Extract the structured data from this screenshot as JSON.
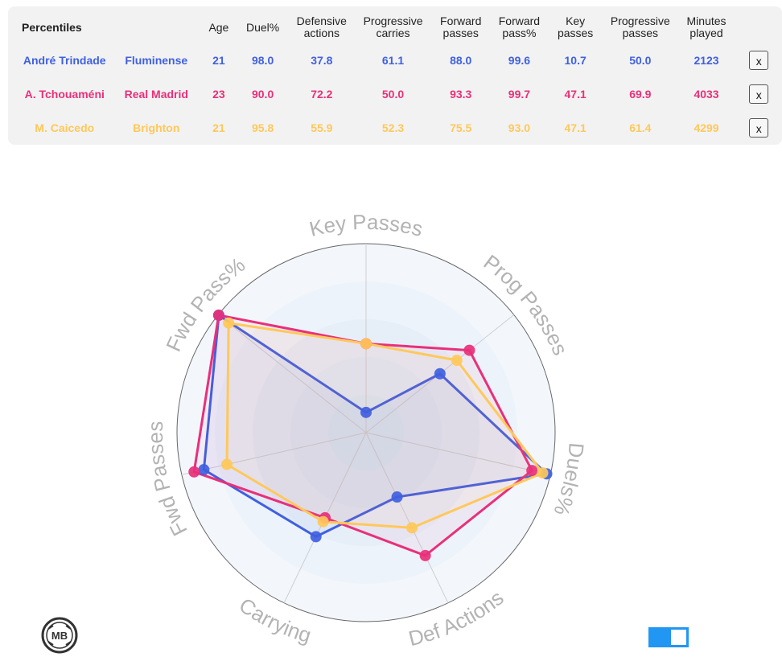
{
  "table": {
    "title": "Percentiles",
    "headers": [
      {
        "key": "age",
        "label": "Age",
        "width": 48
      },
      {
        "key": "duel",
        "label": "Duel%",
        "width": 62
      },
      {
        "key": "def",
        "label": "Defensive actions",
        "width": 85
      },
      {
        "key": "pcarry",
        "label": "Progressive carries",
        "width": 93
      },
      {
        "key": "fwd",
        "label": "Forward passes",
        "width": 76
      },
      {
        "key": "fwdpct",
        "label": "Forward pass%",
        "width": 70
      },
      {
        "key": "key",
        "label": "Key passes",
        "width": 70
      },
      {
        "key": "ppass",
        "label": "Progressive passes",
        "width": 92
      },
      {
        "key": "min",
        "label": "Minutes played",
        "width": 73
      }
    ],
    "rows": [
      {
        "player": "André Trindade",
        "club": "Fluminense",
        "color": "#4060e0",
        "values": [
          "21",
          "98.0",
          "37.8",
          "61.1",
          "88.0",
          "99.6",
          "10.7",
          "50.0",
          "2123"
        ]
      },
      {
        "player": "A. Tchouaméni",
        "club": "Real Madrid",
        "color": "#e8307a",
        "values": [
          "23",
          "90.0",
          "72.2",
          "50.0",
          "93.3",
          "99.7",
          "47.1",
          "69.9",
          "4033"
        ]
      },
      {
        "player": "M. Caicedo",
        "club": "Brighton",
        "color": "#ffc85a",
        "values": [
          "21",
          "95.8",
          "55.9",
          "52.3",
          "75.5",
          "93.0",
          "47.1",
          "61.4",
          "4299"
        ]
      }
    ],
    "remove_label": "x"
  },
  "chart_data": {
    "type": "radar",
    "axes": [
      "Key Passes",
      "Prog Passes",
      "Duels%",
      "Def Actions",
      "Carrying",
      "Fwd Passes",
      "Fwd Pass%"
    ],
    "range": [
      0,
      100
    ],
    "series": [
      {
        "name": "André Trindade",
        "color": "#4060e0",
        "values": [
          10.7,
          50.0,
          98.0,
          37.8,
          61.1,
          88.0,
          99.6
        ]
      },
      {
        "name": "A. Tchouaméni",
        "color": "#e8307a",
        "values": [
          47.1,
          69.9,
          90.0,
          72.2,
          50.0,
          93.3,
          99.7
        ]
      },
      {
        "name": "M. Caicedo",
        "color": "#ffc85a",
        "values": [
          47.1,
          61.4,
          95.8,
          55.9,
          52.3,
          75.5,
          93.0
        ]
      }
    ]
  },
  "logo": {
    "text": "MB"
  }
}
